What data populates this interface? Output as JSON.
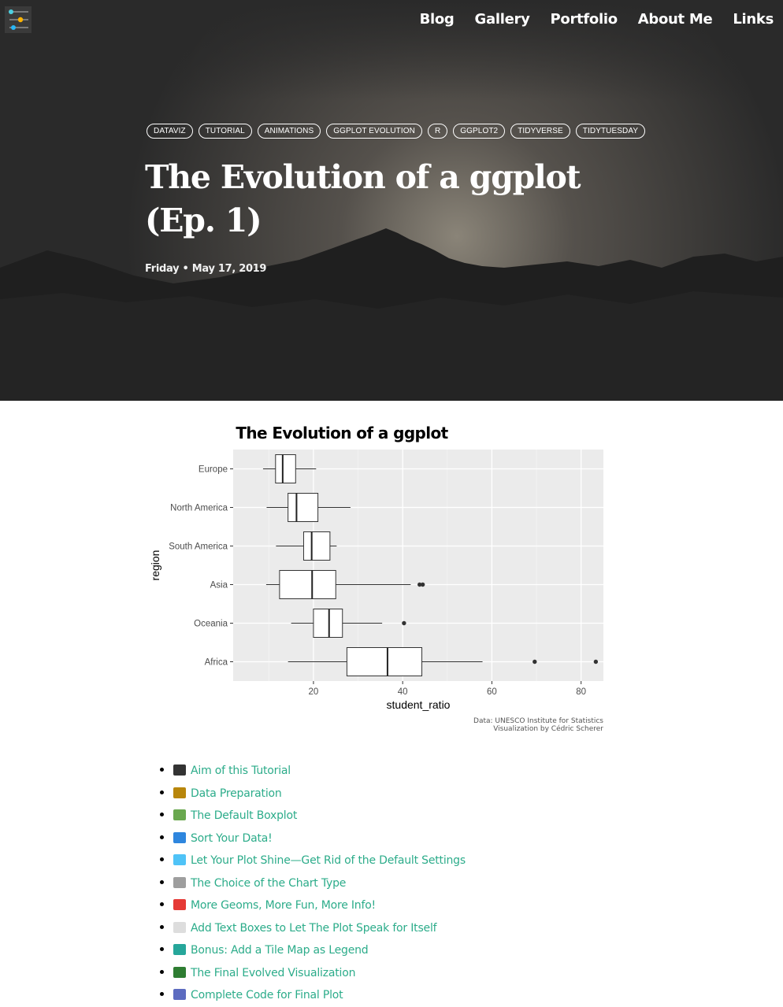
{
  "nav": {
    "items": [
      "Blog",
      "Gallery",
      "Portfolio",
      "About Me",
      "Links"
    ]
  },
  "post": {
    "tags": [
      "DATAVIZ",
      "TUTORIAL",
      "ANIMATIONS",
      "GGPLOT EVOLUTION",
      "R",
      "GGPLOT2",
      "TIDYVERSE",
      "TIDYTUESDAY"
    ],
    "title": "The Evolution of a ggplot (Ep. 1)",
    "date": "Friday • May 17, 2019"
  },
  "chart_data": {
    "type": "boxplot",
    "title": "The Evolution of a ggplot",
    "xlabel": "student_ratio",
    "ylabel": "region",
    "xlim": [
      2,
      85
    ],
    "x_ticks": [
      20,
      40,
      60,
      80
    ],
    "grid": true,
    "caption_lines": [
      "Data: UNESCO Institute for Statistics",
      "Visualization by Cédric Scherer"
    ],
    "categories": [
      "Europe",
      "North America",
      "South America",
      "Asia",
      "Oceania",
      "Africa"
    ],
    "boxes": [
      {
        "region": "Europe",
        "whisker_low": 8.7,
        "q1": 11.5,
        "median": 13.1,
        "q3": 16.0,
        "whisker_high": 20.6,
        "outliers": []
      },
      {
        "region": "North America",
        "whisker_low": 9.5,
        "q1": 14.3,
        "median": 16.2,
        "q3": 21.0,
        "whisker_high": 28.3,
        "outliers": []
      },
      {
        "region": "South America",
        "whisker_low": 11.6,
        "q1": 17.8,
        "median": 19.6,
        "q3": 23.7,
        "whisker_high": 25.2,
        "outliers": []
      },
      {
        "region": "Asia",
        "whisker_low": 9.4,
        "q1": 12.4,
        "median": 19.7,
        "q3": 25.0,
        "whisker_high": 41.8,
        "outliers": [
          43.8,
          44.5
        ]
      },
      {
        "region": "Oceania",
        "whisker_low": 15.0,
        "q1": 20.0,
        "median": 23.5,
        "q3": 26.5,
        "whisker_high": 35.4,
        "outliers": [
          40.3
        ]
      },
      {
        "region": "Africa",
        "whisker_low": 14.3,
        "q1": 27.5,
        "median": 36.6,
        "q3": 44.3,
        "whisker_high": 57.9,
        "outliers": [
          69.6,
          83.3
        ]
      }
    ]
  },
  "toc": {
    "items": [
      {
        "icon": "checkered-flag-icon",
        "color": "#333333",
        "label": "Aim of this Tutorial"
      },
      {
        "icon": "file-cabinet-icon",
        "color": "#b8860b",
        "label": "Data Preparation"
      },
      {
        "icon": "seedling-icon",
        "color": "#6aa84f",
        "label": "The Default Boxplot"
      },
      {
        "icon": "shuffle-icon",
        "color": "#2e86de",
        "label": "Sort Your Data!"
      },
      {
        "icon": "gem-icon",
        "color": "#4fc3f7",
        "label": "Let Your Plot Shine—Get Rid of the Default Settings"
      },
      {
        "icon": "bar-chart-icon",
        "color": "#9e9e9e",
        "label": "The Choice of the Chart Type"
      },
      {
        "icon": "hundred-points-icon",
        "color": "#e53935",
        "label": "More Geoms, More Fun, More Info!"
      },
      {
        "icon": "speech-balloon-icon",
        "color": "#dddddd",
        "label": "Add Text Boxes to Let The Plot Speak for Itself"
      },
      {
        "icon": "map-icon",
        "color": "#26a69a",
        "label": "Bonus: Add a Tile Map as Legend"
      },
      {
        "icon": "christmas-tree-icon",
        "color": "#2e7d32",
        "label": "The Final Evolved Visualization"
      },
      {
        "icon": "laptop-icon",
        "color": "#5c6bc0",
        "label": "Complete Code for Final Plot"
      }
    ]
  }
}
